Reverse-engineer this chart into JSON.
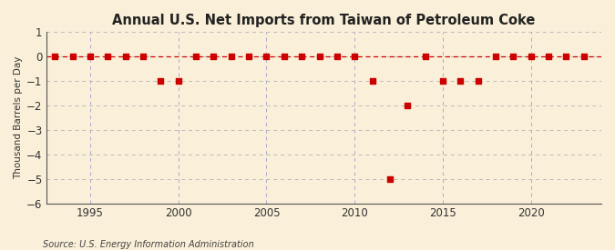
{
  "title": "Annual U.S. Net Imports from Taiwan of Petroleum Coke",
  "ylabel": "Thousand Barrels per Day",
  "source": "Source: U.S. Energy Information Administration",
  "xlim": [
    1992.5,
    2024
  ],
  "ylim": [
    -6,
    1
  ],
  "yticks": [
    1,
    0,
    -1,
    -2,
    -3,
    -4,
    -5,
    -6
  ],
  "xticks": [
    1995,
    2000,
    2005,
    2010,
    2015,
    2020
  ],
  "background_color": "#faefd8",
  "plot_bg_color": "#faefd8",
  "marker_color": "#cc0000",
  "line_color": "#cc0000",
  "grid_color": "#bbbbbb",
  "vgrid_color": "#aaaacc",
  "years": [
    1993,
    1994,
    1995,
    1996,
    1997,
    1998,
    1999,
    2000,
    2001,
    2002,
    2003,
    2004,
    2005,
    2006,
    2007,
    2008,
    2009,
    2010,
    2011,
    2012,
    2013,
    2014,
    2015,
    2016,
    2017,
    2018,
    2019,
    2020,
    2021,
    2022,
    2023
  ],
  "values": [
    0,
    0,
    0,
    0,
    0,
    0,
    -1,
    -1,
    0,
    0,
    0,
    0,
    0,
    0,
    0,
    0,
    0,
    0,
    -1,
    -5,
    -2,
    0,
    -1,
    -1,
    -1,
    0,
    0,
    0,
    0,
    0,
    0
  ],
  "title_fontsize": 10.5,
  "ylabel_fontsize": 7.5,
  "tick_fontsize": 8.5,
  "source_fontsize": 7
}
